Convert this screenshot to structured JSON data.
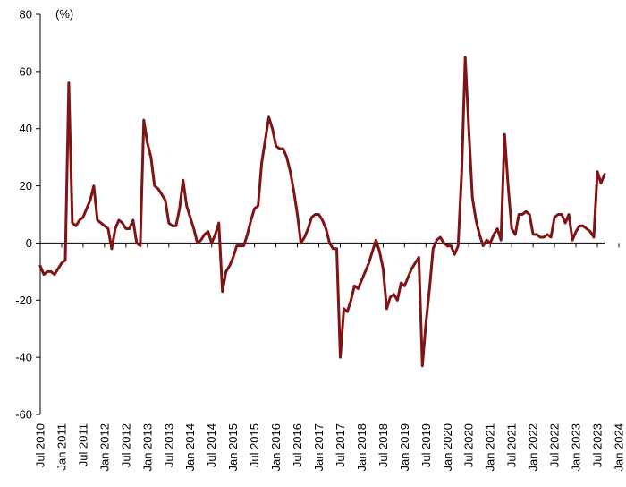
{
  "chart_data": {
    "type": "line",
    "unit_label": "(%)",
    "ylim": [
      -60,
      80
    ],
    "y_ticks": [
      80,
      60,
      40,
      20,
      0,
      -20,
      -40,
      -60
    ],
    "x_tick_labels": [
      "Jul 2010",
      "Jan 2011",
      "Jul 2011",
      "Jan 2012",
      "Jul 2012",
      "Jan 2013",
      "Jul 2013",
      "Jan 2014",
      "Jul 2014",
      "Jan 2015",
      "Jul 2015",
      "Jan 2016",
      "Jul 2016",
      "Jan 2017",
      "Jul 2017",
      "Jan 2018",
      "Jul 2018",
      "Jan 2019",
      "Jul 2019",
      "Jan 2020",
      "Jul 2020",
      "Jan 2021",
      "Jul 2021",
      "Jan 2022",
      "Jul 2022",
      "Jan 2023",
      "Jul 2023",
      "Jan 2024"
    ],
    "grid": false,
    "legend": "none",
    "line_color": "#7f1416",
    "series": [
      {
        "x_start": "2010-07",
        "frequency": "monthly",
        "values": [
          -8,
          -11,
          -10,
          -10,
          -11,
          -9,
          -7,
          -6,
          56,
          7,
          6,
          8,
          9,
          12,
          15,
          20,
          8,
          7,
          6,
          5,
          -2,
          5,
          8,
          7,
          5,
          5,
          8,
          0,
          -1,
          43,
          35,
          30,
          20,
          19,
          17,
          15,
          7,
          6,
          6,
          12,
          22,
          13,
          9,
          5,
          0,
          1,
          3,
          4,
          0,
          3,
          7,
          -17,
          -10,
          -8,
          -5,
          -1,
          -1,
          -1,
          3,
          8,
          12,
          13,
          28,
          36,
          44,
          40,
          34,
          33,
          33,
          30,
          25,
          18,
          10,
          0,
          2,
          5,
          9,
          10,
          10,
          8,
          5,
          0,
          -2,
          -2,
          -40,
          -23,
          -24,
          -20,
          -15,
          -16,
          -13,
          -10,
          -7,
          -3,
          1,
          -3,
          -9,
          -23,
          -19,
          -18,
          -20,
          -14,
          -15,
          -12,
          -9,
          -7,
          -5,
          -43,
          -28,
          -16,
          -2,
          1,
          2,
          0,
          -1,
          -1,
          -4,
          -1,
          25,
          65,
          40,
          16,
          8,
          3,
          -1,
          1,
          0,
          3,
          5,
          1,
          38,
          20,
          5,
          3,
          10,
          10,
          11,
          10,
          3,
          3,
          2,
          2,
          3,
          2,
          9,
          10,
          10,
          7,
          10,
          1,
          4,
          6,
          6,
          5,
          4,
          2,
          25,
          21,
          24
        ]
      }
    ]
  }
}
